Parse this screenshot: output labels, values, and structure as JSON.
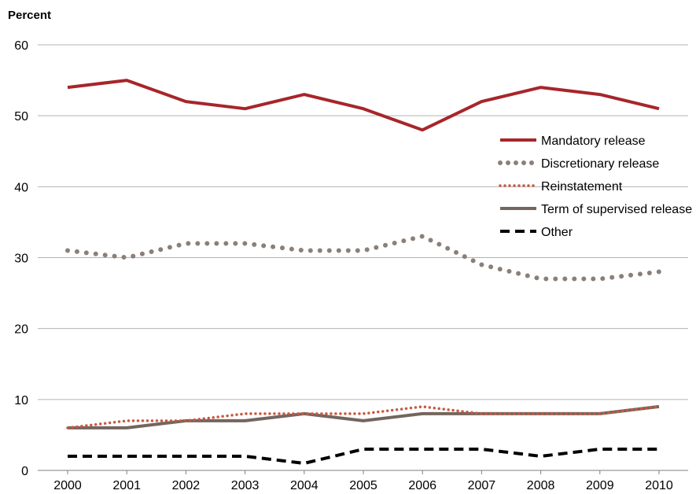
{
  "chart_data": {
    "type": "line",
    "title": "",
    "xlabel": "",
    "ylabel": "Percent",
    "x": [
      "2000",
      "2001",
      "2002",
      "2003",
      "2004",
      "2005",
      "2006",
      "2007",
      "2008",
      "2009",
      "2010"
    ],
    "ylim": [
      0,
      60
    ],
    "yticks": [
      0,
      10,
      20,
      30,
      40,
      50,
      60
    ],
    "grid": "horizontal",
    "legend_position": "right",
    "series": [
      {
        "name": "Mandatory release",
        "style": "solid-thick",
        "color": "#A6262A",
        "values": [
          54,
          55,
          52,
          51,
          53,
          51,
          48,
          52,
          54,
          53,
          51
        ]
      },
      {
        "name": "Discretionary release",
        "style": "round-dots",
        "color": "#8C7F78",
        "values": [
          31,
          30,
          32,
          32,
          31,
          31,
          33,
          29,
          27,
          27,
          28
        ]
      },
      {
        "name": "Reinstatement",
        "style": "small-dots",
        "color": "#C8593F",
        "values": [
          6,
          7,
          7,
          8,
          8,
          8,
          9,
          8,
          8,
          8,
          9
        ]
      },
      {
        "name": "Term of supervised release",
        "style": "solid",
        "color": "#74655F",
        "values": [
          6,
          6,
          7,
          7,
          8,
          7,
          8,
          8,
          8,
          8,
          9
        ]
      },
      {
        "name": "Other",
        "style": "dashed",
        "color": "#000000",
        "values": [
          2,
          2,
          2,
          2,
          1,
          3,
          3,
          3,
          2,
          3,
          3
        ]
      }
    ]
  }
}
